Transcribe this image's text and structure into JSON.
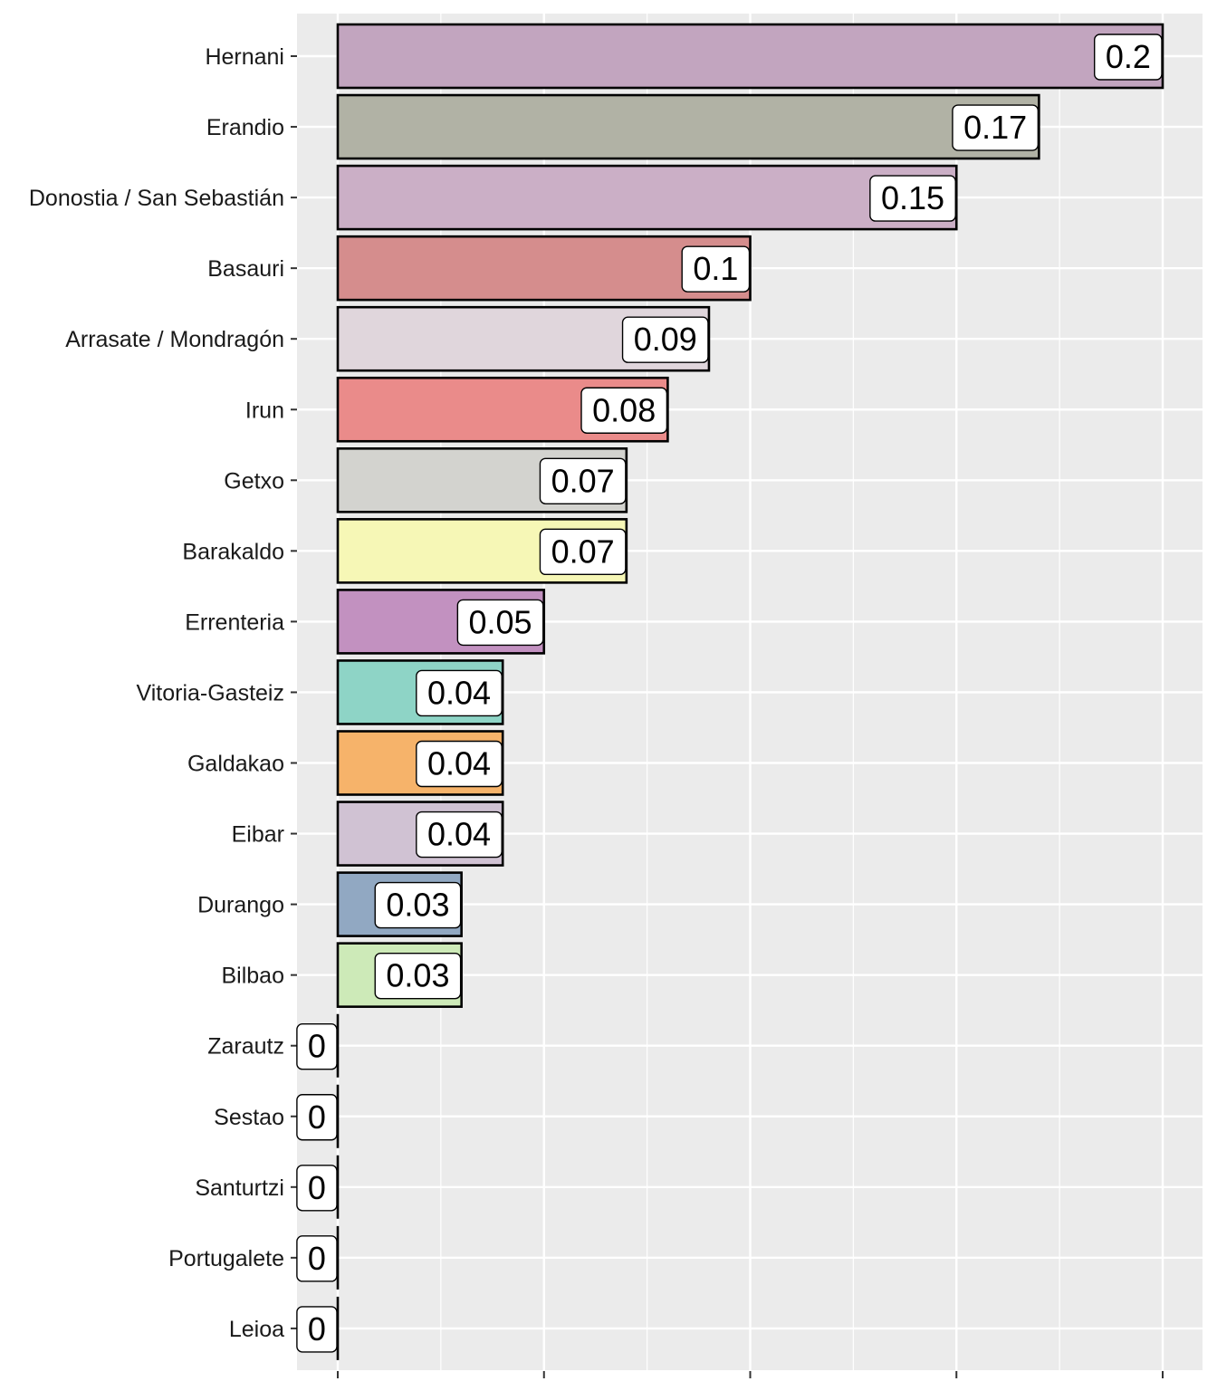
{
  "chart_data": {
    "type": "bar",
    "orientation": "horizontal",
    "title": "",
    "xlabel": "",
    "ylabel": "",
    "xlim": [
      0,
      0.2
    ],
    "x_major_ticks": [
      0,
      0.05,
      0.1,
      0.15,
      0.2
    ],
    "x_tick_labels_visible": false,
    "grid": true,
    "legend": "none",
    "categories": [
      "Hernani",
      "Erandio",
      "Donostia / San Sebastián",
      "Basauri",
      "Arrasate / Mondragón",
      "Irun",
      "Getxo",
      "Barakaldo",
      "Errenteria",
      "Vitoria-Gasteiz",
      "Galdakao",
      "Eibar",
      "Durango",
      "Bilbao",
      "Zarautz",
      "Sestao",
      "Santurtzi",
      "Portugalete",
      "Leioa"
    ],
    "values": [
      0.2,
      0.17,
      0.15,
      0.1,
      0.09,
      0.08,
      0.07,
      0.07,
      0.05,
      0.04,
      0.04,
      0.04,
      0.03,
      0.03,
      0,
      0,
      0,
      0,
      0
    ],
    "labels": [
      "0.2",
      "0.17",
      "0.15",
      "0.1",
      "0.09",
      "0.08",
      "0.07",
      "0.07",
      "0.05",
      "0.04",
      "0.04",
      "0.04",
      "0.03",
      "0.03",
      "0",
      "0",
      "0",
      "0",
      "0"
    ],
    "colors": [
      "#c2a5bf",
      "#b1b2a5",
      "#cbafc6",
      "#d58d8d",
      "#e0d6dc",
      "#ea8b8a",
      "#d3d3cf",
      "#f6f7b6",
      "#c291c0",
      "#8ed4c6",
      "#f6b36a",
      "#d0c2d3",
      "#91a8c2",
      "#cdeab8",
      "#cccccc",
      "#cccccc",
      "#cccccc",
      "#cccccc",
      "#cccccc"
    ],
    "panel_background": "#ebebeb",
    "grid_color": "#ffffff"
  }
}
